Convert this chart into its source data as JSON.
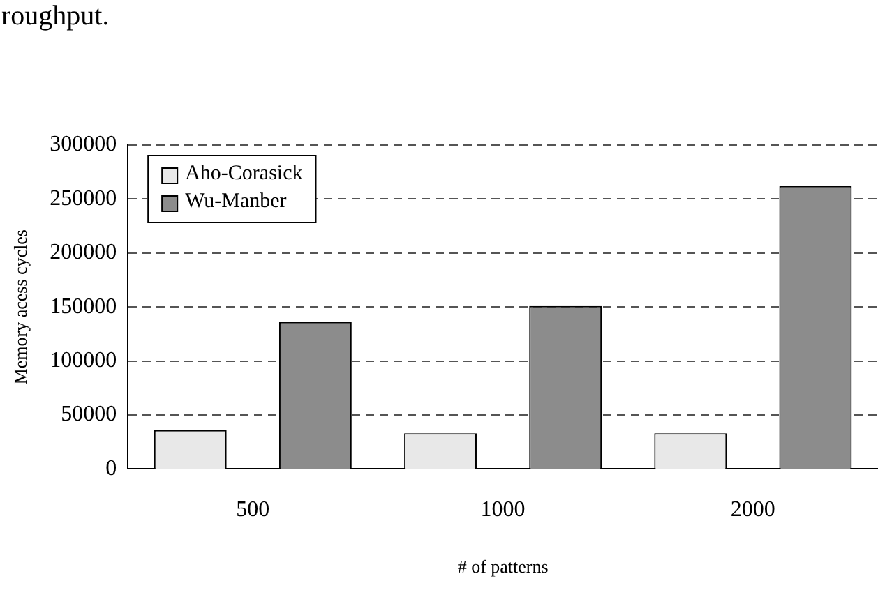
{
  "chart_data": {
    "type": "bar",
    "xlabel": "# of patterns",
    "ylabel": "Memory acess cycles",
    "annotations": [
      "roughput."
    ],
    "categories": [
      "500",
      "1000",
      "2000"
    ],
    "series": [
      {
        "name": "Aho-Corasick",
        "color": "#e8e8e8",
        "values": [
          36000,
          33000,
          33000
        ]
      },
      {
        "name": "Wu-Manber",
        "color": "#8c8c8c",
        "values": [
          136000,
          151000,
          262000
        ]
      }
    ],
    "ylim": [
      0,
      300000
    ],
    "yticks": [
      0,
      50000,
      100000,
      150000,
      200000,
      250000,
      300000
    ],
    "grid": "y",
    "legend": "top left",
    "line_style": "dashed"
  }
}
